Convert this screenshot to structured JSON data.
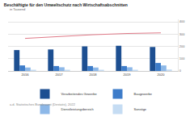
{
  "chart_data": {
    "type": "bar",
    "title": "Beschäftigte für den Umweltschutz nach Wirtschaftsabschnitten",
    "subtitle": "in Tausend",
    "annotations": [
      "a.d. Statistisches Bundesamt (Destatis), 2022"
    ],
    "categories": [
      "2016",
      "2017",
      "2018",
      "2019",
      "2020"
    ],
    "series": [
      {
        "name": "Verarbeitendes Gewerbe",
        "color": "#1d4f91",
        "values": [
          170,
          175,
          200,
          205,
          195
        ]
      },
      {
        "name": "Baugewerbe",
        "color": "#3d7cc9",
        "values": [
          45,
          40,
          40,
          40,
          65
        ]
      },
      {
        "name": "Dienstleistungsbereich",
        "color": "#8db8e8",
        "values": [
          28,
          30,
          28,
          30,
          45
        ]
      },
      {
        "name": "Sonstige",
        "color": "#c5dcf3",
        "values": [
          10,
          10,
          10,
          10,
          12
        ]
      },
      {
        "type": "line",
        "color": "#e07a88",
        "values": [
          265,
          280,
          295,
          305,
          310
        ]
      }
    ],
    "ylim": [
      0,
      420
    ],
    "yticks": [
      0,
      100,
      200,
      300,
      400
    ],
    "grid": true,
    "legend": "bottom"
  }
}
